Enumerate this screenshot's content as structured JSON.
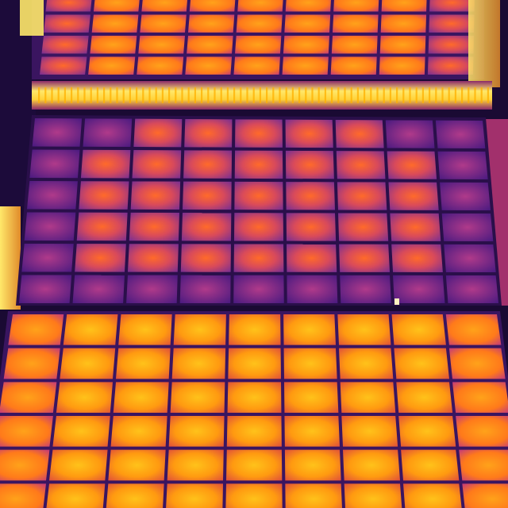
{
  "image": {
    "palette": {
      "background": "#1a0a33",
      "frame_dark": "#2a0f4a",
      "cell_hot": "#ffb400",
      "cell_warm": "#ff7a1a",
      "cell_edge": "#c43a7a",
      "cell_cool": "#7a2aa0",
      "cell_cold": "#4a1a80",
      "strip_hot": "#ffe86a",
      "strip_glow": "#ffd23a"
    },
    "panel_rows": [
      {
        "name": "top-panel-row",
        "cols": 9,
        "rows": 4,
        "temperature": "warm"
      },
      {
        "name": "middle-panel-row",
        "cols": 9,
        "rows": 6,
        "temperature": "cool"
      },
      {
        "name": "bottom-panel-row",
        "cols": 9,
        "rows": 6,
        "temperature": "hot"
      }
    ]
  }
}
